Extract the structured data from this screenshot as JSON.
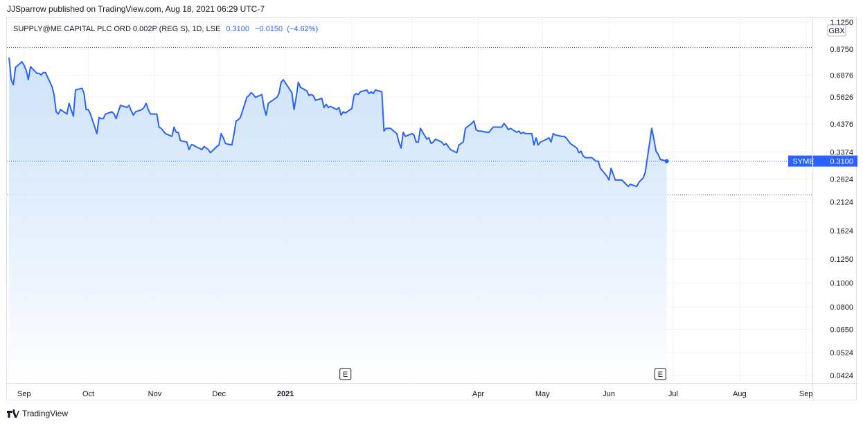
{
  "header": {
    "published_text": "JJSparrow published on TradingView.com, Aug 18, 2021 06:29 UTC-7"
  },
  "legend": {
    "symbol_text": "SUPPLY@ME CAPITAL PLC ORD 0.002P (REG S), 1D, LSE",
    "last": "0.3100",
    "change": "−0.0150",
    "change_pct": "(−4.62%)"
  },
  "footer": {
    "logo_text": "TradingView"
  },
  "colors": {
    "line": "#2962ff",
    "fill_top": "#bfdaf9",
    "fill_bottom": "#ffffff",
    "grid": "#f0f3fa",
    "axis_text": "#131722"
  },
  "chart_data": {
    "type": "area",
    "y_scale": "log",
    "currency_badge": "GBX",
    "price_label_name": "SYME",
    "price_label_value": "0.3100",
    "y_ticks": [
      "1.1250",
      "0.8750",
      "0.6876",
      "0.5626",
      "0.4376",
      "0.3374",
      "0.2624",
      "0.2124",
      "0.1624",
      "0.1250",
      "0.1000",
      "0.0800",
      "0.0650",
      "0.0524",
      "0.0424"
    ],
    "x_ticks": [
      "Sep",
      "Oct",
      "Nov",
      "Dec",
      "2021",
      "Apr",
      "May",
      "Jun",
      "Jul",
      "Aug",
      "Sep"
    ],
    "x_ticks_bold": [
      "2021"
    ],
    "earnings_marker": "E",
    "earnings_dates": [
      "2021-01-29",
      "2021-06-25"
    ],
    "x_range": [
      "2020-08-24",
      "2021-09-04"
    ],
    "y_range": [
      0.0395,
      1.17
    ],
    "reference_levels": [
      0.89,
      0.227
    ],
    "points": [
      [
        "2020-08-25",
        0.81
      ],
      [
        "2020-08-26",
        0.66
      ],
      [
        "2020-08-27",
        0.63
      ],
      [
        "2020-08-28",
        0.74
      ],
      [
        "2020-08-31",
        0.78
      ],
      [
        "2020-09-01",
        0.755
      ],
      [
        "2020-09-02",
        0.72
      ],
      [
        "2020-09-03",
        0.66
      ],
      [
        "2020-09-04",
        0.745
      ],
      [
        "2020-09-07",
        0.7
      ],
      [
        "2020-09-08",
        0.7
      ],
      [
        "2020-09-09",
        0.69
      ],
      [
        "2020-09-10",
        0.705
      ],
      [
        "2020-09-11",
        0.705
      ],
      [
        "2020-09-14",
        0.62
      ],
      [
        "2020-09-15",
        0.575
      ],
      [
        "2020-09-16",
        0.49
      ],
      [
        "2020-09-17",
        0.48
      ],
      [
        "2020-09-18",
        0.5
      ],
      [
        "2020-09-21",
        0.48
      ],
      [
        "2020-09-22",
        0.53
      ],
      [
        "2020-09-23",
        0.5
      ],
      [
        "2020-09-24",
        0.47
      ],
      [
        "2020-09-25",
        0.6
      ],
      [
        "2020-09-28",
        0.61
      ],
      [
        "2020-09-29",
        0.58
      ],
      [
        "2020-09-30",
        0.5
      ],
      [
        "2020-10-01",
        0.5
      ],
      [
        "2020-10-02",
        0.48
      ],
      [
        "2020-10-05",
        0.4
      ],
      [
        "2020-10-06",
        0.465
      ],
      [
        "2020-10-07",
        0.46
      ],
      [
        "2020-10-08",
        0.46
      ],
      [
        "2020-10-09",
        0.48
      ],
      [
        "2020-10-12",
        0.49
      ],
      [
        "2020-10-13",
        0.48
      ],
      [
        "2020-10-14",
        0.46
      ],
      [
        "2020-10-15",
        0.49
      ],
      [
        "2020-10-16",
        0.52
      ],
      [
        "2020-10-19",
        0.51
      ],
      [
        "2020-10-20",
        0.52
      ],
      [
        "2020-10-21",
        0.495
      ],
      [
        "2020-10-22",
        0.475
      ],
      [
        "2020-10-23",
        0.49
      ],
      [
        "2020-10-26",
        0.5
      ],
      [
        "2020-10-27",
        0.51
      ],
      [
        "2020-10-28",
        0.53
      ],
      [
        "2020-10-29",
        0.5
      ],
      [
        "2020-10-30",
        0.48
      ],
      [
        "2020-11-02",
        0.48
      ],
      [
        "2020-11-03",
        0.425
      ],
      [
        "2020-11-04",
        0.42
      ],
      [
        "2020-11-05",
        0.41
      ],
      [
        "2020-11-06",
        0.4
      ],
      [
        "2020-11-09",
        0.39
      ],
      [
        "2020-11-10",
        0.425
      ],
      [
        "2020-11-11",
        0.405
      ],
      [
        "2020-11-12",
        0.405
      ],
      [
        "2020-11-13",
        0.375
      ],
      [
        "2020-11-16",
        0.37
      ],
      [
        "2020-11-17",
        0.345
      ],
      [
        "2020-11-18",
        0.36
      ],
      [
        "2020-11-19",
        0.36
      ],
      [
        "2020-11-20",
        0.355
      ],
      [
        "2020-11-23",
        0.345
      ],
      [
        "2020-11-24",
        0.355
      ],
      [
        "2020-11-25",
        0.35
      ],
      [
        "2020-11-26",
        0.345
      ],
      [
        "2020-11-27",
        0.335
      ],
      [
        "2020-11-30",
        0.355
      ],
      [
        "2020-12-01",
        0.36
      ],
      [
        "2020-12-02",
        0.4
      ],
      [
        "2020-12-03",
        0.385
      ],
      [
        "2020-12-04",
        0.365
      ],
      [
        "2020-12-07",
        0.36
      ],
      [
        "2020-12-08",
        0.4
      ],
      [
        "2020-12-09",
        0.45
      ],
      [
        "2020-12-10",
        0.455
      ],
      [
        "2020-12-11",
        0.465
      ],
      [
        "2020-12-14",
        0.56
      ],
      [
        "2020-12-15",
        0.57
      ],
      [
        "2020-12-16",
        0.585
      ],
      [
        "2020-12-17",
        0.575
      ],
      [
        "2020-12-18",
        0.56
      ],
      [
        "2020-12-21",
        0.575
      ],
      [
        "2020-12-22",
        0.51
      ],
      [
        "2020-12-23",
        0.475
      ],
      [
        "2020-12-24",
        0.53
      ],
      [
        "2020-12-28",
        0.56
      ],
      [
        "2020-12-29",
        0.58
      ],
      [
        "2020-12-30",
        0.645
      ],
      [
        "2020-12-31",
        0.66
      ],
      [
        "2021-01-04",
        0.585
      ],
      [
        "2021-01-05",
        0.5
      ],
      [
        "2021-01-06",
        0.56
      ],
      [
        "2021-01-07",
        0.645
      ],
      [
        "2021-01-08",
        0.615
      ],
      [
        "2021-01-11",
        0.595
      ],
      [
        "2021-01-12",
        0.57
      ],
      [
        "2021-01-13",
        0.575
      ],
      [
        "2021-01-14",
        0.57
      ],
      [
        "2021-01-15",
        0.545
      ],
      [
        "2021-01-18",
        0.555
      ],
      [
        "2021-01-19",
        0.51
      ],
      [
        "2021-01-20",
        0.525
      ],
      [
        "2021-01-21",
        0.51
      ],
      [
        "2021-01-22",
        0.515
      ],
      [
        "2021-01-25",
        0.5
      ],
      [
        "2021-01-26",
        0.51
      ],
      [
        "2021-01-27",
        0.475
      ],
      [
        "2021-01-28",
        0.49
      ],
      [
        "2021-01-29",
        0.485
      ],
      [
        "2021-02-01",
        0.505
      ],
      [
        "2021-02-02",
        0.57
      ],
      [
        "2021-02-03",
        0.58
      ],
      [
        "2021-02-04",
        0.575
      ],
      [
        "2021-02-05",
        0.59
      ],
      [
        "2021-02-08",
        0.6
      ],
      [
        "2021-02-09",
        0.58
      ],
      [
        "2021-02-10",
        0.59
      ],
      [
        "2021-02-11",
        0.58
      ],
      [
        "2021-02-12",
        0.6
      ],
      [
        "2021-02-15",
        0.59
      ],
      [
        "2021-02-16",
        0.41
      ],
      [
        "2021-02-17",
        0.42
      ],
      [
        "2021-02-18",
        0.42
      ],
      [
        "2021-02-19",
        0.42
      ],
      [
        "2021-02-22",
        0.4
      ],
      [
        "2021-02-23",
        0.37
      ],
      [
        "2021-02-24",
        0.35
      ],
      [
        "2021-02-25",
        0.405
      ],
      [
        "2021-02-26",
        0.39
      ],
      [
        "2021-03-01",
        0.4
      ],
      [
        "2021-03-02",
        0.395
      ],
      [
        "2021-03-03",
        0.37
      ],
      [
        "2021-03-04",
        0.37
      ],
      [
        "2021-03-05",
        0.42
      ],
      [
        "2021-03-08",
        0.38
      ],
      [
        "2021-03-09",
        0.385
      ],
      [
        "2021-03-10",
        0.365
      ],
      [
        "2021-03-11",
        0.37
      ],
      [
        "2021-03-12",
        0.38
      ],
      [
        "2021-03-15",
        0.37
      ],
      [
        "2021-03-16",
        0.36
      ],
      [
        "2021-03-17",
        0.365
      ],
      [
        "2021-03-18",
        0.355
      ],
      [
        "2021-03-19",
        0.345
      ],
      [
        "2021-03-22",
        0.335
      ],
      [
        "2021-03-23",
        0.36
      ],
      [
        "2021-03-24",
        0.365
      ],
      [
        "2021-03-25",
        0.37
      ],
      [
        "2021-03-26",
        0.42
      ],
      [
        "2021-03-29",
        0.44
      ],
      [
        "2021-03-30",
        0.45
      ],
      [
        "2021-03-31",
        0.415
      ],
      [
        "2021-04-01",
        0.41
      ],
      [
        "2021-04-02",
        0.41
      ],
      [
        "2021-04-05",
        0.405
      ],
      [
        "2021-04-06",
        0.405
      ],
      [
        "2021-04-07",
        0.415
      ],
      [
        "2021-04-08",
        0.425
      ],
      [
        "2021-04-09",
        0.425
      ],
      [
        "2021-04-12",
        0.425
      ],
      [
        "2021-04-13",
        0.44
      ],
      [
        "2021-04-14",
        0.43
      ],
      [
        "2021-04-15",
        0.415
      ],
      [
        "2021-04-16",
        0.42
      ],
      [
        "2021-04-19",
        0.405
      ],
      [
        "2021-04-20",
        0.41
      ],
      [
        "2021-04-21",
        0.4
      ],
      [
        "2021-04-22",
        0.405
      ],
      [
        "2021-04-23",
        0.4
      ],
      [
        "2021-04-26",
        0.4
      ],
      [
        "2021-04-27",
        0.36
      ],
      [
        "2021-04-28",
        0.385
      ],
      [
        "2021-04-29",
        0.36
      ],
      [
        "2021-04-30",
        0.37
      ],
      [
        "2021-05-03",
        0.38
      ],
      [
        "2021-05-04",
        0.385
      ],
      [
        "2021-05-05",
        0.37
      ],
      [
        "2021-05-06",
        0.4
      ],
      [
        "2021-05-07",
        0.395
      ],
      [
        "2021-05-10",
        0.39
      ],
      [
        "2021-05-11",
        0.39
      ],
      [
        "2021-05-12",
        0.385
      ],
      [
        "2021-05-13",
        0.375
      ],
      [
        "2021-05-14",
        0.365
      ],
      [
        "2021-05-17",
        0.35
      ],
      [
        "2021-05-18",
        0.335
      ],
      [
        "2021-05-19",
        0.34
      ],
      [
        "2021-05-20",
        0.325
      ],
      [
        "2021-05-21",
        0.32
      ],
      [
        "2021-05-24",
        0.32
      ],
      [
        "2021-05-25",
        0.315
      ],
      [
        "2021-05-26",
        0.31
      ],
      [
        "2021-05-27",
        0.31
      ],
      [
        "2021-05-28",
        0.29
      ],
      [
        "2021-05-31",
        0.27
      ],
      [
        "2021-06-01",
        0.26
      ],
      [
        "2021-06-02",
        0.29
      ],
      [
        "2021-06-03",
        0.275
      ],
      [
        "2021-06-04",
        0.26
      ],
      [
        "2021-06-07",
        0.26
      ],
      [
        "2021-06-08",
        0.255
      ],
      [
        "2021-06-09",
        0.25
      ],
      [
        "2021-06-10",
        0.245
      ],
      [
        "2021-06-11",
        0.25
      ],
      [
        "2021-06-14",
        0.245
      ],
      [
        "2021-06-15",
        0.255
      ],
      [
        "2021-06-16",
        0.26
      ],
      [
        "2021-06-17",
        0.265
      ],
      [
        "2021-06-18",
        0.28
      ],
      [
        "2021-06-21",
        0.42
      ],
      [
        "2021-06-22",
        0.38
      ],
      [
        "2021-06-23",
        0.34
      ],
      [
        "2021-06-24",
        0.33
      ],
      [
        "2021-06-25",
        0.315
      ],
      [
        "2021-06-28",
        0.31
      ]
    ]
  }
}
